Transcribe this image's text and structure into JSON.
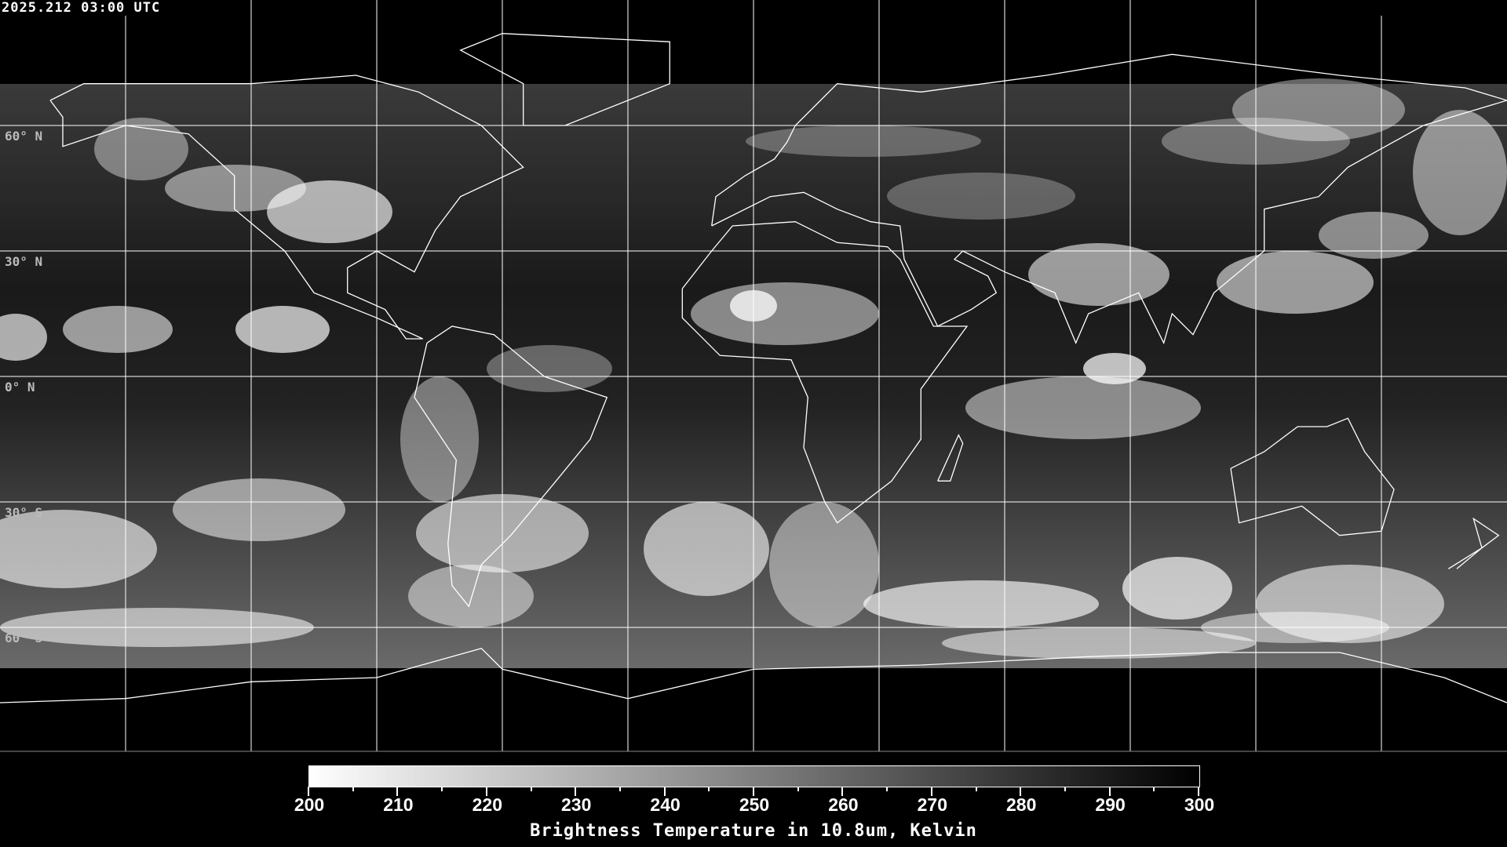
{
  "timestamp": "2025.212 03:00 UTC",
  "lat_labels": [
    "60° N",
    "30° N",
    "0° N",
    "30° S",
    "60° S"
  ],
  "colorbar": {
    "min": 200,
    "max": 300,
    "tick_labels": [
      "200",
      "210",
      "220",
      "230",
      "240",
      "250",
      "260",
      "270",
      "280",
      "290",
      "300"
    ],
    "title": "Brightness Temperature in 10.8um, Kelvin",
    "colors": {
      "low": "#ffffff",
      "high": "#000000"
    }
  },
  "map": {
    "projection": "equirectangular",
    "graticule_spacing_deg": 30,
    "background": "#000000",
    "grid_color": "#ffffff",
    "coastline_color": "#ffffff"
  }
}
